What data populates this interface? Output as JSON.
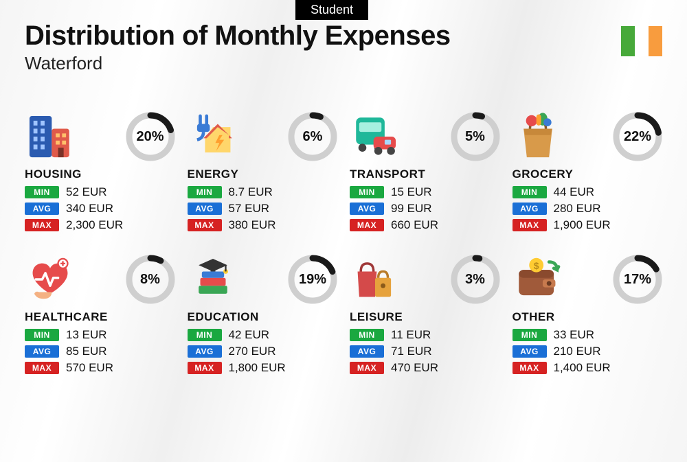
{
  "tag_label": "Student",
  "title": "Distribution of Monthly Expenses",
  "subtitle": "Waterford",
  "flag_colors": [
    "#47a93a",
    "#ffffff",
    "#f89c3e"
  ],
  "ring_track_color": "#cfcfcf",
  "ring_fill_color": "#1a1a1a",
  "ring_stroke_width": 9,
  "ring_radius": 31,
  "badge_colors": {
    "min": "#1aa840",
    "avg": "#1a6fd6",
    "max": "#d62222"
  },
  "badge_labels": {
    "min": "MIN",
    "avg": "AVG",
    "max": "MAX"
  },
  "categories": [
    {
      "name": "HOUSING",
      "pct": 20,
      "min": "52 EUR",
      "avg": "340 EUR",
      "max": "2,300 EUR",
      "icon": "buildings"
    },
    {
      "name": "ENERGY",
      "pct": 6,
      "min": "8.7 EUR",
      "avg": "57 EUR",
      "max": "380 EUR",
      "icon": "energy"
    },
    {
      "name": "TRANSPORT",
      "pct": 5,
      "min": "15 EUR",
      "avg": "99 EUR",
      "max": "660 EUR",
      "icon": "transport"
    },
    {
      "name": "GROCERY",
      "pct": 22,
      "min": "44 EUR",
      "avg": "280 EUR",
      "max": "1,900 EUR",
      "icon": "grocery"
    },
    {
      "name": "HEALTHCARE",
      "pct": 8,
      "min": "13 EUR",
      "avg": "85 EUR",
      "max": "570 EUR",
      "icon": "health"
    },
    {
      "name": "EDUCATION",
      "pct": 19,
      "min": "42 EUR",
      "avg": "270 EUR",
      "max": "1,800 EUR",
      "icon": "education"
    },
    {
      "name": "LEISURE",
      "pct": 3,
      "min": "11 EUR",
      "avg": "71 EUR",
      "max": "470 EUR",
      "icon": "leisure"
    },
    {
      "name": "OTHER",
      "pct": 17,
      "min": "33 EUR",
      "avg": "210 EUR",
      "max": "1,400 EUR",
      "icon": "wallet"
    }
  ]
}
